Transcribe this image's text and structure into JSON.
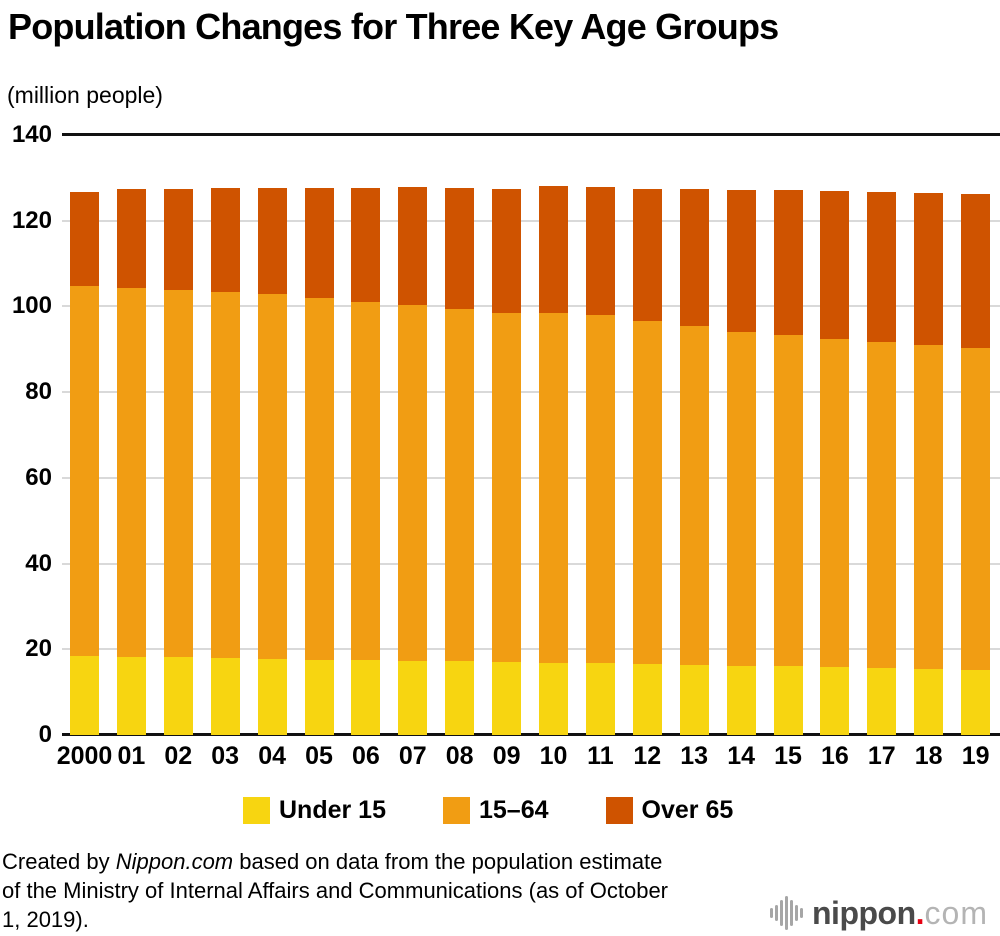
{
  "title": "Population Changes for Three Key Age Groups",
  "unit_label": "(million people)",
  "chart_data": {
    "type": "bar",
    "stacked": true,
    "title": "Population Changes for Three Key Age Groups",
    "ylabel": "(million people)",
    "ylim": [
      0,
      140
    ],
    "yticks": [
      140,
      120,
      100,
      80,
      60,
      40,
      20,
      0
    ],
    "grid": true,
    "legend_position": "bottom",
    "categories": [
      "2000",
      "01",
      "02",
      "03",
      "04",
      "05",
      "06",
      "07",
      "08",
      "09",
      "10",
      "11",
      "12",
      "13",
      "14",
      "15",
      "16",
      "17",
      "18",
      "19"
    ],
    "series": [
      {
        "name": "Under 15",
        "color": "#F7D511",
        "values": [
          18.5,
          18.3,
          18.1,
          17.9,
          17.7,
          17.5,
          17.4,
          17.3,
          17.2,
          17.0,
          16.8,
          16.7,
          16.5,
          16.4,
          16.2,
          16.0,
          15.8,
          15.6,
          15.4,
          15.2
        ]
      },
      {
        "name": "15–64",
        "color": "#F19D13",
        "values": [
          86.2,
          86.1,
          85.7,
          85.4,
          85.1,
          84.4,
          83.7,
          83.0,
          82.3,
          81.5,
          81.7,
          81.3,
          80.2,
          79.0,
          77.9,
          77.3,
          76.6,
          76.0,
          75.5,
          75.1
        ]
      },
      {
        "name": "Over 65",
        "color": "#CF5300",
        "values": [
          22.0,
          22.9,
          23.6,
          24.3,
          24.9,
          25.8,
          26.6,
          27.5,
          28.2,
          29.0,
          29.5,
          29.8,
          30.8,
          31.9,
          33.0,
          33.9,
          34.6,
          35.2,
          35.6,
          35.9
        ]
      }
    ]
  },
  "footer": {
    "lines": [
      {
        "pre": "Created by ",
        "italic": "Nippon.com",
        "post": " based on data from the population estimate"
      },
      {
        "pre": "of the Ministry of Internal Affairs and Communications (as of October",
        "italic": "",
        "post": ""
      },
      {
        "pre": "1, 2019).",
        "italic": "",
        "post": ""
      }
    ]
  },
  "logo": {
    "icon": "soundwave-bars-icon",
    "icon_bar_heights": [
      10,
      16,
      26,
      34,
      26,
      16,
      10
    ],
    "icon_color": "#a6a6a6",
    "wordmark": "nippon",
    "dot": ".",
    "tld": "com",
    "dot_color": "#e60012"
  },
  "colors": {
    "grid": "#d9d9d9",
    "axis": "#111111",
    "background": "#ffffff"
  }
}
